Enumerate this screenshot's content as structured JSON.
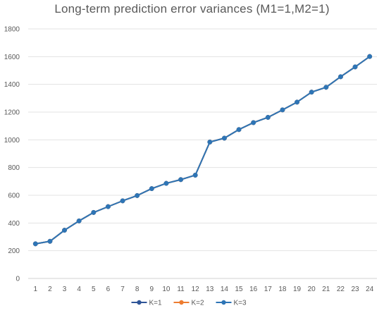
{
  "chart_data": {
    "type": "line",
    "title": "Long-term prediction error variances (M1=1,M2=1)",
    "xlabel": "",
    "ylabel": "",
    "x": [
      1,
      2,
      3,
      4,
      5,
      6,
      7,
      8,
      9,
      10,
      11,
      12,
      13,
      14,
      15,
      16,
      17,
      18,
      19,
      20,
      21,
      22,
      23,
      24
    ],
    "ylim": [
      0,
      1800
    ],
    "yticks": [
      0,
      200,
      400,
      600,
      800,
      1000,
      1200,
      1400,
      1600,
      1800
    ],
    "grid": true,
    "legend_position": "bottom",
    "series": [
      {
        "name": "K=1",
        "color": "#2f5597",
        "marker": "circle",
        "values": [
          250,
          268,
          348,
          415,
          476,
          518,
          560,
          598,
          648,
          686,
          713,
          745,
          984,
          1012,
          1074,
          1124,
          1162,
          1216,
          1272,
          1344,
          1379,
          1455,
          1526,
          1601
        ]
      },
      {
        "name": "K=2",
        "color": "#ed7d31",
        "marker": "circle",
        "values": [
          250,
          268,
          348,
          415,
          476,
          518,
          560,
          598,
          648,
          686,
          713,
          745,
          984,
          1012,
          1074,
          1124,
          1162,
          1216,
          1272,
          1344,
          1379,
          1455,
          1526,
          1601
        ]
      },
      {
        "name": "K=3",
        "color": "#2e75b6",
        "marker": "circle",
        "values": [
          250,
          268,
          348,
          415,
          476,
          518,
          560,
          598,
          648,
          686,
          713,
          745,
          984,
          1012,
          1074,
          1124,
          1162,
          1216,
          1272,
          1344,
          1379,
          1455,
          1526,
          1601
        ]
      }
    ]
  }
}
